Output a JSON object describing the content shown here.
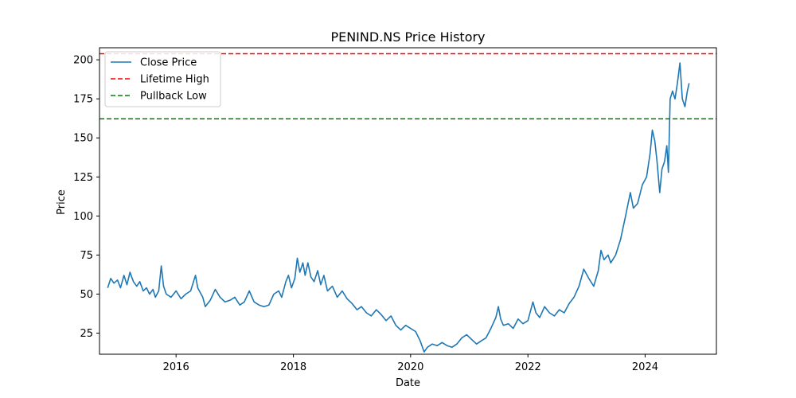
{
  "chart_data": {
    "type": "line",
    "title": "PENIND.NS Price History",
    "xlabel": "Date",
    "ylabel": "Price",
    "xlim": [
      "2014-09-11",
      "2025-03-20"
    ],
    "ylim": [
      11.5,
      207.7
    ],
    "x_ticks": [
      "2016",
      "2018",
      "2020",
      "2022",
      "2024"
    ],
    "y_ticks": [
      25,
      50,
      75,
      100,
      125,
      150,
      175,
      200
    ],
    "grid": false,
    "legend_position": "upper-left",
    "series": [
      {
        "name": "Close Price",
        "color": "#1f77b4",
        "style": "solid",
        "points": [
          [
            "2014-11-01",
            54
          ],
          [
            "2014-11-20",
            60
          ],
          [
            "2014-12-10",
            57
          ],
          [
            "2015-01-01",
            59
          ],
          [
            "2015-01-20",
            54
          ],
          [
            "2015-02-10",
            62
          ],
          [
            "2015-03-01",
            56
          ],
          [
            "2015-03-20",
            64
          ],
          [
            "2015-04-10",
            58
          ],
          [
            "2015-05-01",
            55
          ],
          [
            "2015-05-20",
            58
          ],
          [
            "2015-06-10",
            52
          ],
          [
            "2015-07-01",
            54
          ],
          [
            "2015-07-20",
            50
          ],
          [
            "2015-08-10",
            53
          ],
          [
            "2015-08-25",
            48
          ],
          [
            "2015-09-15",
            52
          ],
          [
            "2015-10-01",
            68
          ],
          [
            "2015-10-15",
            55
          ],
          [
            "2015-11-01",
            50
          ],
          [
            "2015-12-01",
            48
          ],
          [
            "2016-01-01",
            52
          ],
          [
            "2016-02-01",
            47
          ],
          [
            "2016-03-01",
            50
          ],
          [
            "2016-04-01",
            52
          ],
          [
            "2016-05-01",
            62
          ],
          [
            "2016-05-15",
            54
          ],
          [
            "2016-06-15",
            48
          ],
          [
            "2016-07-01",
            42
          ],
          [
            "2016-08-01",
            46
          ],
          [
            "2016-09-01",
            53
          ],
          [
            "2016-10-01",
            48
          ],
          [
            "2016-11-01",
            45
          ],
          [
            "2016-12-01",
            46
          ],
          [
            "2017-01-01",
            48
          ],
          [
            "2017-02-01",
            43
          ],
          [
            "2017-03-01",
            45
          ],
          [
            "2017-04-01",
            52
          ],
          [
            "2017-05-01",
            45
          ],
          [
            "2017-06-01",
            43
          ],
          [
            "2017-07-01",
            42
          ],
          [
            "2017-08-01",
            43
          ],
          [
            "2017-09-01",
            50
          ],
          [
            "2017-10-01",
            52
          ],
          [
            "2017-10-20",
            48
          ],
          [
            "2017-11-15",
            58
          ],
          [
            "2017-12-01",
            62
          ],
          [
            "2017-12-20",
            54
          ],
          [
            "2018-01-10",
            60
          ],
          [
            "2018-01-25",
            73
          ],
          [
            "2018-02-10",
            64
          ],
          [
            "2018-03-01",
            70
          ],
          [
            "2018-03-15",
            62
          ],
          [
            "2018-04-01",
            70
          ],
          [
            "2018-04-20",
            61
          ],
          [
            "2018-05-10",
            58
          ],
          [
            "2018-06-01",
            65
          ],
          [
            "2018-06-20",
            56
          ],
          [
            "2018-07-10",
            62
          ],
          [
            "2018-08-01",
            52
          ],
          [
            "2018-09-01",
            55
          ],
          [
            "2018-10-01",
            48
          ],
          [
            "2018-11-01",
            52
          ],
          [
            "2018-12-01",
            47
          ],
          [
            "2019-01-01",
            44
          ],
          [
            "2019-02-01",
            40
          ],
          [
            "2019-03-01",
            42
          ],
          [
            "2019-04-01",
            38
          ],
          [
            "2019-05-01",
            36
          ],
          [
            "2019-06-01",
            40
          ],
          [
            "2019-07-01",
            37
          ],
          [
            "2019-08-01",
            33
          ],
          [
            "2019-09-01",
            36
          ],
          [
            "2019-10-01",
            30
          ],
          [
            "2019-11-01",
            27
          ],
          [
            "2019-12-01",
            30
          ],
          [
            "2020-01-01",
            28
          ],
          [
            "2020-02-01",
            26
          ],
          [
            "2020-03-01",
            20
          ],
          [
            "2020-03-25",
            13
          ],
          [
            "2020-04-15",
            16
          ],
          [
            "2020-05-15",
            18
          ],
          [
            "2020-06-15",
            17
          ],
          [
            "2020-07-15",
            19
          ],
          [
            "2020-08-15",
            17
          ],
          [
            "2020-09-15",
            16
          ],
          [
            "2020-10-15",
            18
          ],
          [
            "2020-11-15",
            22
          ],
          [
            "2020-12-15",
            24
          ],
          [
            "2021-01-15",
            21
          ],
          [
            "2021-02-15",
            18
          ],
          [
            "2021-03-15",
            20
          ],
          [
            "2021-04-15",
            22
          ],
          [
            "2021-05-15",
            28
          ],
          [
            "2021-06-15",
            35
          ],
          [
            "2021-07-01",
            42
          ],
          [
            "2021-07-15",
            34
          ],
          [
            "2021-08-01",
            30
          ],
          [
            "2021-09-01",
            31
          ],
          [
            "2021-10-01",
            28
          ],
          [
            "2021-11-01",
            34
          ],
          [
            "2021-12-01",
            31
          ],
          [
            "2022-01-01",
            33
          ],
          [
            "2022-02-01",
            45
          ],
          [
            "2022-02-20",
            38
          ],
          [
            "2022-03-15",
            35
          ],
          [
            "2022-04-15",
            42
          ],
          [
            "2022-05-15",
            38
          ],
          [
            "2022-06-15",
            36
          ],
          [
            "2022-07-15",
            40
          ],
          [
            "2022-08-15",
            38
          ],
          [
            "2022-09-15",
            44
          ],
          [
            "2022-10-15",
            48
          ],
          [
            "2022-11-15",
            55
          ],
          [
            "2022-12-15",
            66
          ],
          [
            "2023-01-15",
            60
          ],
          [
            "2023-02-15",
            55
          ],
          [
            "2023-03-15",
            65
          ],
          [
            "2023-04-01",
            78
          ],
          [
            "2023-04-20",
            72
          ],
          [
            "2023-05-15",
            75
          ],
          [
            "2023-06-01",
            70
          ],
          [
            "2023-07-01",
            75
          ],
          [
            "2023-08-01",
            85
          ],
          [
            "2023-09-01",
            100
          ],
          [
            "2023-10-01",
            115
          ],
          [
            "2023-10-20",
            105
          ],
          [
            "2023-11-15",
            108
          ],
          [
            "2023-12-15",
            120
          ],
          [
            "2024-01-10",
            125
          ],
          [
            "2024-02-01",
            140
          ],
          [
            "2024-02-15",
            155
          ],
          [
            "2024-03-01",
            148
          ],
          [
            "2024-03-15",
            135
          ],
          [
            "2024-04-01",
            115
          ],
          [
            "2024-04-15",
            130
          ],
          [
            "2024-05-01",
            135
          ],
          [
            "2024-05-15",
            145
          ],
          [
            "2024-05-25",
            128
          ],
          [
            "2024-06-05",
            175
          ],
          [
            "2024-06-20",
            180
          ],
          [
            "2024-07-05",
            175
          ],
          [
            "2024-07-20",
            185
          ],
          [
            "2024-08-05",
            198
          ],
          [
            "2024-08-20",
            175
          ],
          [
            "2024-09-05",
            170
          ],
          [
            "2024-09-20",
            180
          ],
          [
            "2024-10-01",
            185
          ]
        ]
      },
      {
        "name": "Lifetime High",
        "color": "#ff0000",
        "style": "dashed",
        "value": 203.9
      },
      {
        "name": "Pullback Low",
        "color": "#008000",
        "style": "dashed",
        "value": 162.2
      }
    ]
  }
}
